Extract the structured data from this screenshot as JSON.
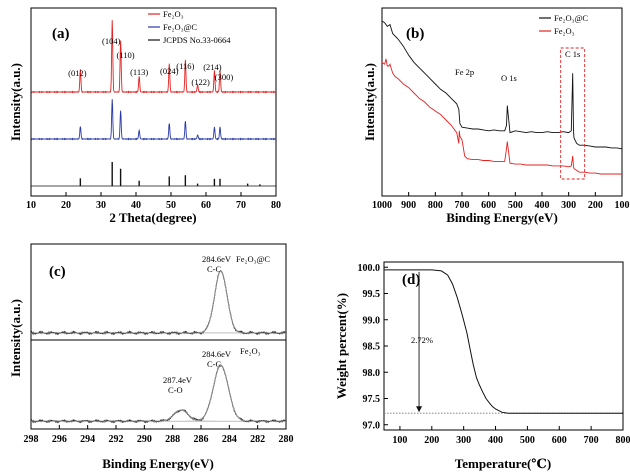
{
  "colors": {
    "fe2o3": "#e52222",
    "fe2o3_c": "#2a3aa6",
    "jcpds": "#111111",
    "ref_line": "#777777",
    "box": "#e52222"
  },
  "chart_data": [
    {
      "id": "a",
      "type": "line",
      "label": "(a)",
      "xlabel": "2 Theta(degree)",
      "ylabel": "Intensity(a.u.)",
      "xlim": [
        10,
        80
      ],
      "xticks": [
        10,
        20,
        30,
        40,
        50,
        60,
        70,
        80
      ],
      "xtick_labels": [
        "10",
        "20",
        "30",
        "40",
        "50",
        "60",
        "70",
        "80"
      ],
      "legend": [
        "Fe₂O₃",
        "Fe₂O₃@C",
        "JCPDS No.33-0664"
      ],
      "peaks": [
        {
          "x": 24.1,
          "label": "(012)",
          "rel": 0.32
        },
        {
          "x": 33.2,
          "label": "(104)",
          "rel": 1.0
        },
        {
          "x": 35.6,
          "label": "(110)",
          "rel": 0.72
        },
        {
          "x": 40.9,
          "label": "(113)",
          "rel": 0.22
        },
        {
          "x": 49.5,
          "label": "(024)",
          "rel": 0.4
        },
        {
          "x": 54.1,
          "label": "(116)",
          "rel": 0.45
        },
        {
          "x": 57.6,
          "label": "(122)",
          "rel": 0.1
        },
        {
          "x": 62.4,
          "label": "(214)",
          "rel": 0.3
        },
        {
          "x": 64.0,
          "label": "(300)",
          "rel": 0.3
        }
      ],
      "extra_sticks": [
        {
          "x": 71.9,
          "rel": 0.1
        },
        {
          "x": 75.4,
          "rel": 0.07
        }
      ]
    },
    {
      "id": "b",
      "type": "line",
      "label": "(b)",
      "xlabel": "Binding Energy(eV)",
      "ylabel": "Intensity(a.u.)",
      "xlim": [
        1000,
        100
      ],
      "xticks": [
        1000,
        900,
        800,
        700,
        600,
        500,
        400,
        300,
        200,
        100
      ],
      "xtick_labels": [
        "1000",
        "900",
        "800",
        "700",
        "600",
        "500",
        "400",
        "300",
        "200",
        "100"
      ],
      "legend": [
        "Fe₂O₃@C",
        "Fe₂O₃"
      ],
      "annotations": [
        "Fe 2p",
        "O 1s",
        "C 1s"
      ],
      "series": [
        {
          "name": "Fe₂O₃@C",
          "x": [
            1000,
            990,
            980,
            970,
            960,
            940,
            920,
            900,
            880,
            860,
            840,
            820,
            800,
            780,
            760,
            740,
            720,
            712,
            708,
            700,
            680,
            660,
            640,
            620,
            600,
            580,
            560,
            540,
            533,
            530,
            520,
            500,
            480,
            460,
            440,
            420,
            400,
            380,
            360,
            340,
            320,
            300,
            290,
            285,
            282,
            280,
            270,
            260,
            240,
            220,
            200,
            180,
            160,
            140,
            120,
            100
          ],
          "y": [
            0.95,
            0.94,
            0.92,
            0.93,
            0.88,
            0.85,
            0.81,
            0.76,
            0.72,
            0.69,
            0.66,
            0.63,
            0.6,
            0.57,
            0.55,
            0.52,
            0.49,
            0.46,
            0.38,
            0.36,
            0.355,
            0.35,
            0.35,
            0.345,
            0.34,
            0.345,
            0.34,
            0.34,
            0.37,
            0.48,
            0.33,
            0.34,
            0.335,
            0.33,
            0.335,
            0.33,
            0.33,
            0.335,
            0.33,
            0.33,
            0.335,
            0.33,
            0.34,
            0.66,
            0.34,
            0.3,
            0.27,
            0.26,
            0.26,
            0.255,
            0.25,
            0.25,
            0.25,
            0.245,
            0.245,
            0.24
          ]
        },
        {
          "name": "Fe₂O₃",
          "x": [
            1000,
            990,
            985,
            980,
            975,
            970,
            960,
            950,
            940,
            920,
            900,
            880,
            860,
            840,
            820,
            800,
            780,
            760,
            740,
            720,
            712,
            710,
            708,
            700,
            690,
            680,
            660,
            640,
            620,
            600,
            580,
            560,
            540,
            533,
            530,
            520,
            500,
            480,
            460,
            440,
            420,
            400,
            380,
            360,
            340,
            320,
            300,
            290,
            285,
            282,
            280,
            270,
            260,
            240,
            220,
            200,
            180,
            160,
            140,
            120,
            100
          ],
          "y": [
            0.72,
            0.71,
            0.74,
            0.7,
            0.7,
            0.71,
            0.66,
            0.64,
            0.63,
            0.6,
            0.58,
            0.55,
            0.52,
            0.5,
            0.47,
            0.45,
            0.43,
            0.4,
            0.37,
            0.33,
            0.27,
            0.34,
            0.31,
            0.29,
            0.2,
            0.185,
            0.18,
            0.18,
            0.175,
            0.175,
            0.17,
            0.17,
            0.17,
            0.24,
            0.28,
            0.16,
            0.155,
            0.155,
            0.15,
            0.15,
            0.15,
            0.15,
            0.15,
            0.145,
            0.145,
            0.145,
            0.14,
            0.145,
            0.2,
            0.14,
            0.13,
            0.12,
            0.11,
            0.11,
            0.105,
            0.105,
            0.1,
            0.1,
            0.1,
            0.1,
            0.1
          ]
        }
      ]
    },
    {
      "id": "c",
      "type": "line",
      "label": "(c)",
      "xlabel": "Binding Energy(eV)",
      "ylabel": "Intensity(a.u.)",
      "xlim": [
        298,
        280
      ],
      "xticks": [
        298,
        296,
        294,
        292,
        290,
        288,
        286,
        284,
        282,
        280
      ],
      "xtick_labels": [
        "298",
        "296",
        "294",
        "292",
        "290",
        "288",
        "286",
        "284",
        "282",
        "280"
      ],
      "legend": [
        "Fe₂O₃@C",
        "Fe₂O₃"
      ],
      "annotations": [
        "284.6eV",
        "C-C",
        "284.6eV",
        "C-C",
        "287.4eV",
        "C-O"
      ],
      "series": [
        {
          "name": "Fe₂O₃@C",
          "peaks": [
            {
              "center": 284.6,
              "height": 1.0,
              "width": 0.62
            }
          ],
          "baseline": 0.05
        },
        {
          "name": "Fe₂O₃",
          "peaks": [
            {
              "center": 284.6,
              "height": 1.0,
              "width": 0.75
            },
            {
              "center": 287.4,
              "height": 0.2,
              "width": 0.7
            }
          ],
          "baseline": 0.05
        }
      ]
    },
    {
      "id": "d",
      "type": "line",
      "label": "(d)",
      "xlabel": "Temperature(℃)",
      "ylabel": "Weight percent(%)",
      "xlim": [
        50,
        800
      ],
      "ylim": [
        96.9,
        100.1
      ],
      "xticks": [
        100,
        200,
        300,
        400,
        500,
        600,
        700,
        800
      ],
      "xtick_labels": [
        "100",
        "200",
        "300",
        "400",
        "500",
        "600",
        "700",
        "800"
      ],
      "yticks": [
        97.0,
        97.5,
        98.0,
        98.5,
        99.0,
        99.5,
        100.0
      ],
      "ytick_labels": [
        "97.0",
        "97.5",
        "98.0",
        "98.5",
        "99.0",
        "99.5",
        "100.0"
      ],
      "annotations": [
        "2.72%"
      ],
      "series": [
        {
          "name": "TGA",
          "x": [
            50,
            100,
            150,
            200,
            230,
            250,
            265,
            280,
            295,
            310,
            320,
            330,
            340,
            350,
            360,
            370,
            380,
            390,
            400,
            410,
            420,
            430,
            440,
            460,
            500,
            600,
            700,
            800
          ],
          "y": [
            99.95,
            99.95,
            99.95,
            99.95,
            99.93,
            99.85,
            99.68,
            99.42,
            99.1,
            98.75,
            98.45,
            98.15,
            97.9,
            97.75,
            97.62,
            97.5,
            97.42,
            97.35,
            97.3,
            97.27,
            97.24,
            97.23,
            97.22,
            97.22,
            97.22,
            97.22,
            97.22,
            97.22
          ]
        }
      ],
      "ref_level": 97.22,
      "arrow_x": 160
    }
  ]
}
